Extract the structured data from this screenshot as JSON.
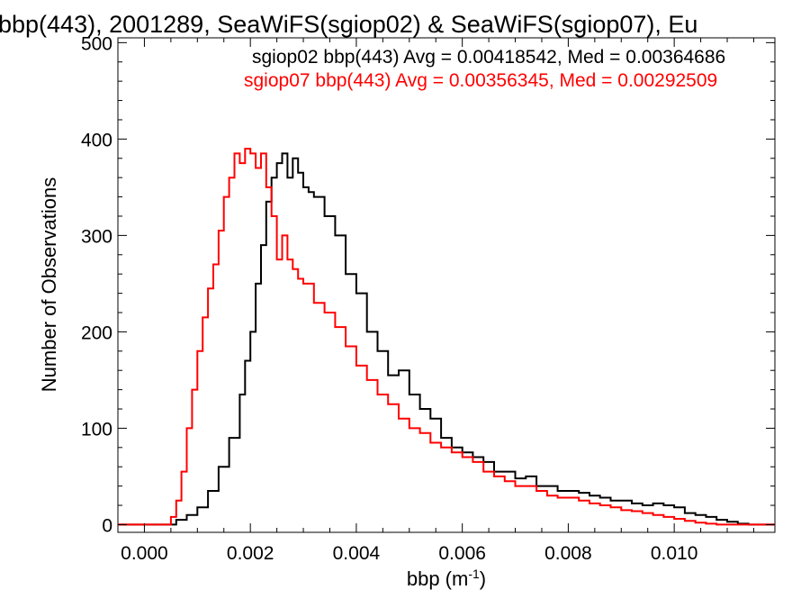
{
  "chart_data": {
    "type": "line",
    "title": "bbp(443), 2001289, SeaWiFS(sgiop02) & SeaWiFS(sgiop07), Eu",
    "xlabel": "bbp (m",
    "xlabel_sup": "-1",
    "xlabel_close": ")",
    "ylabel": "Number of Observations",
    "xlim": [
      -0.0005,
      0.0119
    ],
    "ylim": [
      -8,
      505
    ],
    "x_ticks": [
      0.0,
      0.002,
      0.004,
      0.006,
      0.008,
      0.01
    ],
    "x_tick_labels": [
      "0.000",
      "0.002",
      "0.004",
      "0.006",
      "0.008",
      "0.010"
    ],
    "y_ticks": [
      0,
      100,
      200,
      300,
      400,
      500
    ],
    "y_tick_labels": [
      "0",
      "100",
      "200",
      "300",
      "400",
      "500"
    ],
    "legend": {
      "placement": "top-right",
      "entries": [
        "sgiop02 bbp(443) Avg = 0.00418542, Med = 0.00364686",
        "sgiop07 bbp(443) Avg = 0.00356345, Med = 0.00292509"
      ]
    },
    "series": [
      {
        "color": "#000000",
        "x": [
          -0.0005,
          0.0004,
          0.0006,
          0.0008,
          0.001,
          0.0012,
          0.0014,
          0.0016,
          0.0018,
          0.0019,
          0.002,
          0.0021,
          0.0022,
          0.0023,
          0.0024,
          0.0025,
          0.0026,
          0.0027,
          0.0028,
          0.0029,
          0.003,
          0.0031,
          0.0032,
          0.0034,
          0.0036,
          0.0038,
          0.004,
          0.0042,
          0.0044,
          0.0046,
          0.0048,
          0.005,
          0.0052,
          0.0054,
          0.0056,
          0.0058,
          0.006,
          0.0062,
          0.0064,
          0.0066,
          0.0068,
          0.007,
          0.0072,
          0.0074,
          0.0076,
          0.0078,
          0.008,
          0.0082,
          0.0084,
          0.0086,
          0.0088,
          0.009,
          0.0092,
          0.0094,
          0.0096,
          0.0098,
          0.01,
          0.0102,
          0.0104,
          0.0106,
          0.0108,
          0.011,
          0.0112,
          0.0114,
          0.0119
        ],
        "y": [
          0,
          0,
          5,
          10,
          18,
          35,
          60,
          90,
          135,
          170,
          200,
          250,
          290,
          335,
          360,
          375,
          385,
          360,
          380,
          365,
          350,
          345,
          340,
          320,
          300,
          260,
          240,
          200,
          180,
          155,
          160,
          135,
          120,
          110,
          90,
          80,
          75,
          70,
          65,
          55,
          55,
          48,
          50,
          40,
          40,
          35,
          35,
          33,
          30,
          28,
          25,
          25,
          22,
          20,
          22,
          20,
          18,
          12,
          10,
          8,
          5,
          3,
          1,
          0,
          0
        ]
      },
      {
        "color": "#ff0000",
        "x": [
          -0.0005,
          0.0004,
          0.0005,
          0.0006,
          0.0007,
          0.0008,
          0.0009,
          0.001,
          0.0011,
          0.0012,
          0.0013,
          0.0014,
          0.0015,
          0.0016,
          0.0017,
          0.0018,
          0.0019,
          0.002,
          0.0021,
          0.0022,
          0.0023,
          0.0024,
          0.0025,
          0.0026,
          0.0027,
          0.0028,
          0.0029,
          0.003,
          0.0032,
          0.0034,
          0.0036,
          0.0038,
          0.004,
          0.0042,
          0.0044,
          0.0046,
          0.0048,
          0.005,
          0.0052,
          0.0054,
          0.0056,
          0.0058,
          0.006,
          0.0062,
          0.0064,
          0.0066,
          0.0068,
          0.007,
          0.0072,
          0.0074,
          0.0076,
          0.0078,
          0.008,
          0.0082,
          0.0084,
          0.0086,
          0.0088,
          0.009,
          0.0092,
          0.0094,
          0.0096,
          0.0098,
          0.01,
          0.0102,
          0.0104,
          0.0106,
          0.0108,
          0.011,
          0.0112,
          0.0119
        ],
        "y": [
          0,
          0,
          8,
          25,
          55,
          100,
          140,
          180,
          215,
          245,
          270,
          305,
          340,
          360,
          385,
          375,
          390,
          385,
          370,
          385,
          350,
          320,
          275,
          300,
          275,
          265,
          255,
          250,
          230,
          220,
          205,
          185,
          165,
          150,
          135,
          125,
          110,
          100,
          95,
          85,
          80,
          75,
          70,
          65,
          55,
          50,
          45,
          40,
          40,
          35,
          30,
          28,
          28,
          25,
          22,
          20,
          18,
          15,
          14,
          12,
          10,
          8,
          6,
          4,
          2,
          1,
          0,
          0,
          0,
          0
        ]
      }
    ]
  }
}
